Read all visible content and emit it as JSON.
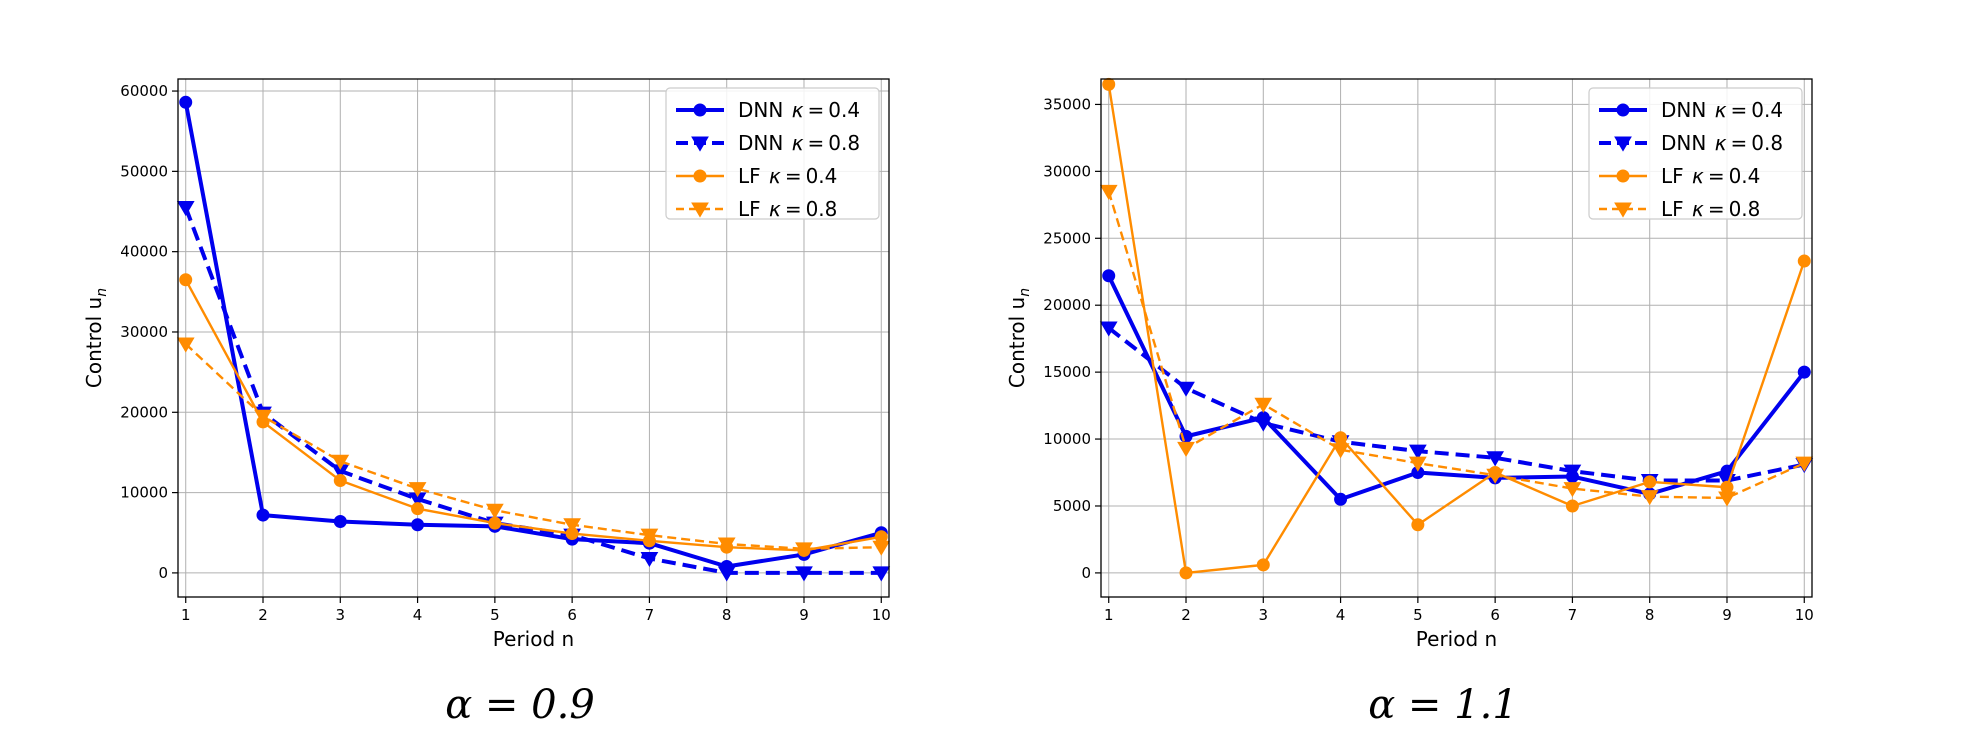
{
  "colors": {
    "blue": "#0000ee",
    "orange": "#ff8c00",
    "grid": "#b0b0b0",
    "axis": "#000000"
  },
  "chart_data": [
    {
      "type": "line",
      "caption": "α = 0.9",
      "xlabel": "Period n",
      "ylabel": "Control u",
      "ylabel_sub": "n",
      "xlim": [
        0.9,
        10.1
      ],
      "ylim": [
        -3000,
        61500
      ],
      "xticks": [
        1,
        2,
        3,
        4,
        5,
        6,
        7,
        8,
        9,
        10
      ],
      "yticks": [
        0,
        10000,
        20000,
        30000,
        40000,
        50000,
        60000
      ],
      "grid": true,
      "legend_position": "upper-right",
      "x": [
        1,
        2,
        3,
        4,
        5,
        6,
        7,
        8,
        9,
        10
      ],
      "series": [
        {
          "name": "DNN κ = 0.4",
          "label_prefix": "DNN ",
          "label_kappa": "0.4",
          "color": "#0000ee",
          "dashed": false,
          "marker": "circle",
          "thick": true,
          "values": [
            58600,
            7200,
            6400,
            6000,
            5800,
            4200,
            3700,
            800,
            2300,
            5000
          ]
        },
        {
          "name": "DNN κ = 0.8",
          "label_prefix": "DNN ",
          "label_kappa": "0.8",
          "color": "#0000ee",
          "dashed": true,
          "marker": "triangle-down",
          "thick": true,
          "values": [
            45500,
            19900,
            12700,
            9200,
            6200,
            4700,
            1800,
            0,
            0,
            0
          ]
        },
        {
          "name": "LF κ = 0.4",
          "label_prefix": "LF ",
          "label_kappa": "0.4",
          "color": "#ff8c00",
          "dashed": false,
          "marker": "circle",
          "thick": false,
          "values": [
            36500,
            18800,
            11500,
            8000,
            6200,
            4900,
            4000,
            3200,
            2800,
            4500
          ]
        },
        {
          "name": "LF κ = 0.8",
          "label_prefix": "LF ",
          "label_kappa": "0.8",
          "color": "#ff8c00",
          "dashed": true,
          "marker": "triangle-down",
          "thick": false,
          "values": [
            28500,
            19500,
            13900,
            10500,
            7800,
            6000,
            4700,
            3600,
            3000,
            3200
          ]
        }
      ]
    },
    {
      "type": "line",
      "caption": "α = 1.1",
      "xlabel": "Period n",
      "ylabel": "Control u",
      "ylabel_sub": "n",
      "xlim": [
        0.9,
        10.1
      ],
      "ylim": [
        -1800,
        36900
      ],
      "xticks": [
        1,
        2,
        3,
        4,
        5,
        6,
        7,
        8,
        9,
        10
      ],
      "yticks": [
        0,
        5000,
        10000,
        15000,
        20000,
        25000,
        30000,
        35000
      ],
      "grid": true,
      "legend_position": "upper-right",
      "x": [
        1,
        2,
        3,
        4,
        5,
        6,
        7,
        8,
        9,
        10
      ],
      "series": [
        {
          "name": "DNN κ = 0.4",
          "label_prefix": "DNN ",
          "label_kappa": "0.4",
          "color": "#0000ee",
          "dashed": false,
          "marker": "circle",
          "thick": true,
          "values": [
            22200,
            10200,
            11600,
            5500,
            7500,
            7100,
            7200,
            5900,
            7600,
            15000
          ]
        },
        {
          "name": "DNN κ = 0.8",
          "label_prefix": "DNN ",
          "label_kappa": "0.8",
          "color": "#0000ee",
          "dashed": true,
          "marker": "triangle-down",
          "thick": true,
          "values": [
            18300,
            13800,
            11200,
            9800,
            9100,
            8600,
            7600,
            6900,
            6900,
            8100
          ]
        },
        {
          "name": "LF κ = 0.4",
          "label_prefix": "LF ",
          "label_kappa": "0.4",
          "color": "#ff8c00",
          "dashed": false,
          "marker": "circle",
          "thick": false,
          "values": [
            36500,
            0,
            600,
            10100,
            3600,
            7500,
            5000,
            6800,
            6400,
            23300
          ]
        },
        {
          "name": "LF κ = 0.8",
          "label_prefix": "LF ",
          "label_kappa": "0.8",
          "color": "#ff8c00",
          "dashed": true,
          "marker": "triangle-down",
          "thick": false,
          "values": [
            28500,
            9300,
            12600,
            9200,
            8200,
            7300,
            6300,
            5700,
            5600,
            8200
          ]
        }
      ]
    }
  ]
}
